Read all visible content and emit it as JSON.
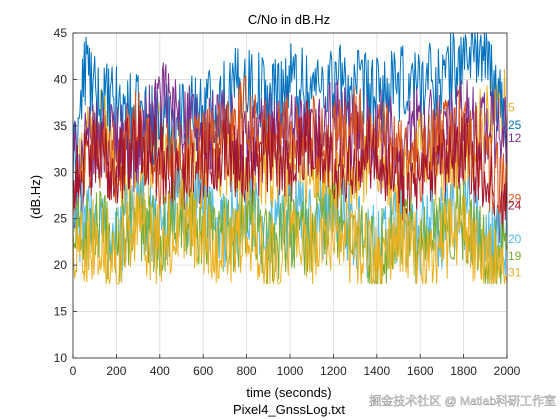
{
  "chart_data": {
    "type": "line",
    "title": "C/No in dB.Hz",
    "xlabel": "time (seconds)",
    "ylabel": "(dB.Hz)",
    "subcaption": "Pixel4_GnssLog.txt",
    "watermark": "掘金技术社区 @ Matlab科研工作室",
    "xlim": [
      0,
      2000
    ],
    "ylim": [
      10,
      45
    ],
    "xticks": [
      0,
      200,
      400,
      600,
      800,
      1000,
      1200,
      1400,
      1600,
      1800,
      2000
    ],
    "yticks": [
      10,
      15,
      20,
      25,
      30,
      35,
      40,
      45
    ],
    "grid": true,
    "series": [
      {
        "name": "5",
        "color": "#EDB120",
        "label_y": 37.0,
        "x": [
          0,
          100,
          200,
          300,
          400,
          500,
          600,
          700,
          800,
          900,
          1000,
          1100,
          1200,
          1300,
          1400,
          1500,
          1600,
          1700,
          1800,
          1900,
          2000
        ],
        "values": [
          27,
          38,
          31,
          28,
          33,
          29,
          30,
          32,
          28,
          31,
          29,
          30,
          28,
          30,
          32,
          27,
          33,
          30,
          31,
          36,
          37
        ]
      },
      {
        "name": "25",
        "color": "#0072BD",
        "label_y": 35.1,
        "x": [
          0,
          60,
          100,
          200,
          300,
          400,
          500,
          600,
          700,
          800,
          900,
          1000,
          1100,
          1200,
          1300,
          1400,
          1500,
          1600,
          1700,
          1800,
          1850,
          1900,
          2000
        ],
        "values": [
          30,
          42,
          38,
          37,
          36,
          35,
          36,
          37,
          38,
          40,
          38,
          40,
          39,
          40,
          39,
          38,
          39,
          40,
          40,
          42,
          44,
          42,
          35
        ]
      },
      {
        "name": "12",
        "color": "#7E2F8E",
        "label_y": 33.7,
        "x": [
          0,
          100,
          200,
          300,
          400,
          500,
          600,
          700,
          800,
          900,
          1000,
          1100,
          1200,
          1300,
          1400,
          1500,
          1600,
          1700,
          1800,
          1900,
          2000
        ],
        "values": [
          31,
          33,
          34,
          32,
          38,
          36,
          34,
          35,
          33,
          35,
          34,
          33,
          36,
          34,
          35,
          33,
          35,
          34,
          36,
          35,
          34
        ]
      },
      {
        "name": "29",
        "color": "#D95319",
        "label_y": 27.2,
        "x": [
          0,
          100,
          200,
          300,
          400,
          500,
          600,
          700,
          800,
          900,
          1000,
          1100,
          1200,
          1300,
          1400,
          1500,
          1600,
          1700,
          1800,
          1900,
          2000
        ],
        "values": [
          26,
          33,
          31,
          35,
          30,
          32,
          33,
          34,
          36,
          33,
          35,
          34,
          33,
          35,
          34,
          32,
          30,
          34,
          35,
          31,
          27
        ]
      },
      {
        "name": "24",
        "color": "#A2142F",
        "label_y": 26.4,
        "x": [
          0,
          100,
          200,
          300,
          400,
          500,
          600,
          700,
          800,
          900,
          1000,
          1100,
          1200,
          1300,
          1400,
          1500,
          1600,
          1700,
          1800,
          1900,
          2000
        ],
        "values": [
          28,
          32,
          30,
          34,
          31,
          29,
          31,
          33,
          30,
          32,
          31,
          34,
          30,
          32,
          33,
          29,
          28,
          30,
          32,
          28,
          26
        ]
      },
      {
        "name": "20",
        "color": "#4DBEEE",
        "label_y": 22.8,
        "x": [
          0,
          100,
          200,
          300,
          400,
          500,
          600,
          700,
          800,
          900,
          1000,
          1100,
          1200,
          1300,
          1400,
          1500,
          1600,
          1700,
          1800,
          1900,
          2000
        ],
        "values": [
          24,
          25,
          23,
          26,
          24,
          27,
          25,
          24,
          26,
          23,
          25,
          24,
          26,
          24,
          22,
          25,
          23,
          24,
          26,
          22,
          23
        ]
      },
      {
        "name": "19",
        "color": "#77AC30",
        "label_y": 21.0,
        "x": [
          0,
          100,
          200,
          300,
          400,
          500,
          600,
          700,
          800,
          900,
          1000,
          1100,
          1200,
          1300,
          1400,
          1500,
          1600,
          1700,
          1800,
          1900,
          2000
        ],
        "values": [
          23,
          24,
          22,
          25,
          23,
          26,
          24,
          23,
          25,
          22,
          24,
          23,
          25,
          23,
          21,
          24,
          22,
          23,
          25,
          21,
          21
        ]
      },
      {
        "name": "31",
        "color": "#EDB120",
        "label_y": 19.2,
        "x": [
          0,
          100,
          200,
          300,
          400,
          500,
          600,
          700,
          800,
          900,
          1000,
          1100,
          1200,
          1300,
          1400,
          1500,
          1600,
          1700,
          1800,
          1900,
          2000
        ],
        "values": [
          22,
          23,
          21,
          24,
          22,
          25,
          23,
          22,
          24,
          21,
          23,
          22,
          24,
          22,
          20,
          23,
          21,
          22,
          24,
          20,
          19
        ]
      }
    ]
  }
}
